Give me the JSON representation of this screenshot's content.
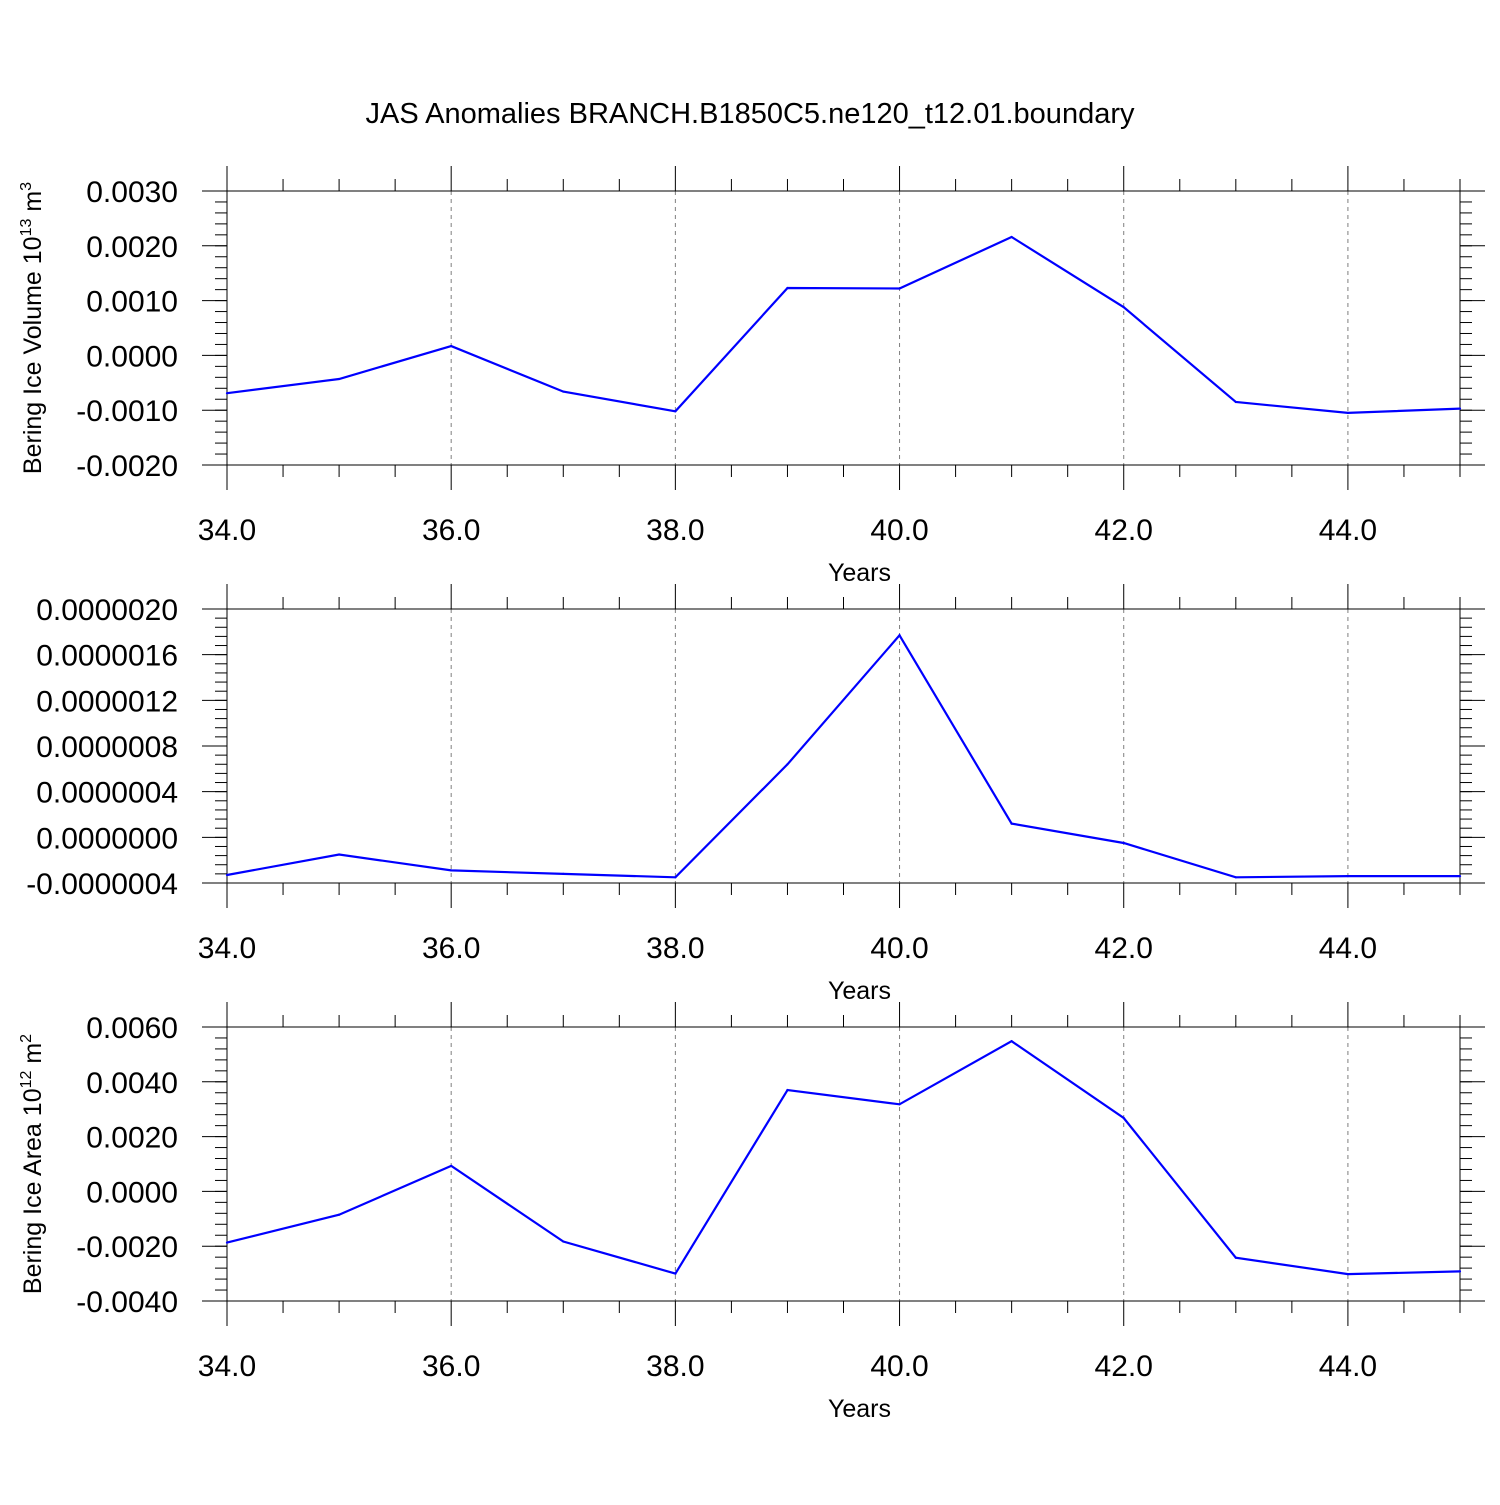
{
  "figure": {
    "title": "JAS Anomalies BRANCH.B1850C5.ne120_t12.01.boundary",
    "line_color": "#0000ff",
    "grid_color": "#7f7f7f"
  },
  "chart_data": [
    {
      "type": "line",
      "xlabel": "Years",
      "ylabel": {
        "prefix": "Bering Ice Volume 10",
        "exp": "13",
        "unit": " m",
        "unit_exp": "3"
      },
      "xlim": [
        34,
        45
      ],
      "ylim": [
        -0.002,
        0.003
      ],
      "x_ticks": [
        "34.0",
        "36.0",
        "38.0",
        "40.0",
        "42.0",
        "44.0"
      ],
      "x_tick_values": [
        34,
        36,
        38,
        40,
        42,
        44
      ],
      "y_ticks": [
        "-0.0020",
        "-0.0010",
        "0.0000",
        "0.0010",
        "0.0020",
        "0.0030"
      ],
      "y_tick_values": [
        -0.002,
        -0.001,
        0.0,
        0.001,
        0.002,
        0.003
      ],
      "y_minor_step": 0.0002,
      "grid": "vertical dashed at major x ticks",
      "x": [
        34,
        35,
        36,
        37,
        38,
        39,
        40,
        41,
        42,
        43,
        44,
        45
      ],
      "values": [
        -0.00069,
        -0.00043,
        0.00017,
        -0.00066,
        -0.00102,
        0.00123,
        0.00122,
        0.00216,
        0.00088,
        -0.00085,
        -0.00105,
        -0.00097
      ]
    },
    {
      "type": "line",
      "xlabel": "Years",
      "ylabel": null,
      "xlim": [
        34,
        45
      ],
      "ylim": [
        -4e-07,
        2e-06
      ],
      "x_ticks": [
        "34.0",
        "36.0",
        "38.0",
        "40.0",
        "42.0",
        "44.0"
      ],
      "x_tick_values": [
        34,
        36,
        38,
        40,
        42,
        44
      ],
      "y_ticks": [
        "-0.0000004",
        "0.0000000",
        "0.0000004",
        "0.0000008",
        "0.0000012",
        "0.0000016",
        "0.0000020"
      ],
      "y_tick_values": [
        -4e-07,
        0.0,
        4e-07,
        8e-07,
        1.2e-06,
        1.6e-06,
        2e-06
      ],
      "y_minor_step": 8e-08,
      "grid": "vertical dashed at major x ticks",
      "x": [
        34,
        35,
        36,
        37,
        38,
        39,
        40,
        41,
        42,
        43,
        44,
        45
      ],
      "values": [
        -3.3e-07,
        -1.5e-07,
        -2.9e-07,
        -3.2e-07,
        -3.5e-07,
        6.4e-07,
        1.77e-06,
        1.2e-07,
        -5e-08,
        -3.5e-07,
        -3.4e-07,
        -3.4e-07
      ]
    },
    {
      "type": "line",
      "xlabel": "Years",
      "ylabel": {
        "prefix": "Bering Ice Area 10",
        "exp": "12",
        "unit": " m",
        "unit_exp": "2"
      },
      "xlim": [
        34,
        45
      ],
      "ylim": [
        -0.004,
        0.006
      ],
      "x_ticks": [
        "34.0",
        "36.0",
        "38.0",
        "40.0",
        "42.0",
        "44.0"
      ],
      "x_tick_values": [
        34,
        36,
        38,
        40,
        42,
        44
      ],
      "y_ticks": [
        "-0.0040",
        "-0.0020",
        "0.0000",
        "0.0020",
        "0.0040",
        "0.0060"
      ],
      "y_tick_values": [
        -0.004,
        -0.002,
        0.0,
        0.002,
        0.004,
        0.006
      ],
      "y_minor_step": 0.0004,
      "grid": "vertical dashed at major x ticks",
      "x": [
        34,
        35,
        36,
        37,
        38,
        39,
        40,
        41,
        42,
        43,
        44,
        45
      ],
      "values": [
        -0.00187,
        -0.00085,
        0.00093,
        -0.00183,
        -0.003,
        0.0037,
        0.00318,
        0.00548,
        0.00268,
        -0.00242,
        -0.00302,
        -0.00292
      ]
    }
  ]
}
